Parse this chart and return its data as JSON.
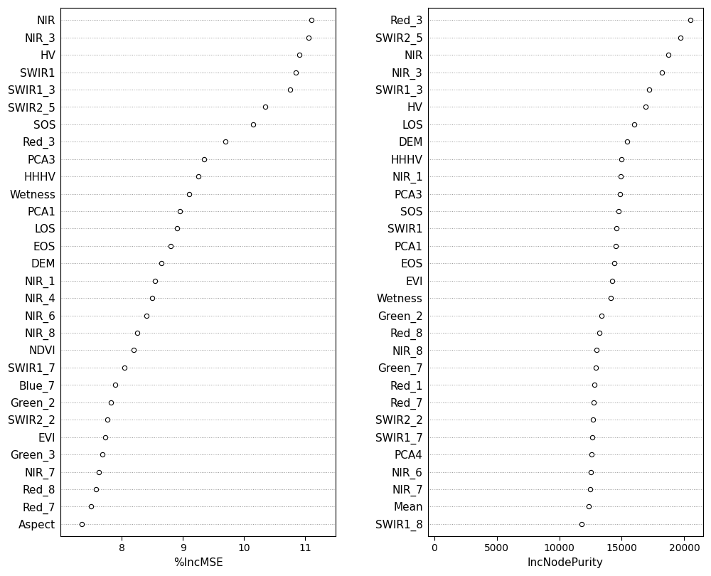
{
  "left_labels": [
    "NIR",
    "NIR_3",
    "HV",
    "SWIR1",
    "SWIR1_3",
    "SWIR2_5",
    "SOS",
    "Red_3",
    "PCA3",
    "HHHV",
    "Wetness",
    "PCA1",
    "LOS",
    "EOS",
    "DEM",
    "NIR_1",
    "NIR_4",
    "NIR_6",
    "NIR_8",
    "NDVI",
    "SWIR1_7",
    "Blue_7",
    "Green_2",
    "SWIR2_2",
    "EVI",
    "Green_3",
    "NIR_7",
    "Red_8",
    "Red_7",
    "Aspect"
  ],
  "left_values": [
    11.1,
    11.05,
    10.9,
    10.85,
    10.75,
    10.35,
    10.15,
    9.7,
    9.35,
    9.25,
    9.1,
    8.95,
    8.9,
    8.8,
    8.65,
    8.55,
    8.5,
    8.4,
    8.25,
    8.2,
    8.05,
    7.9,
    7.82,
    7.77,
    7.73,
    7.68,
    7.63,
    7.58,
    7.5,
    7.35
  ],
  "left_xlabel": "%IncMSE",
  "left_xlim": [
    7.0,
    11.5
  ],
  "left_xticks": [
    8,
    9,
    10,
    11
  ],
  "right_labels": [
    "Red_3",
    "SWIR2_5",
    "NIR",
    "NIR_3",
    "SWIR1_3",
    "HV",
    "LOS",
    "DEM",
    "HHHV",
    "NIR_1",
    "PCA3",
    "SOS",
    "SWIR1",
    "PCA1",
    "EOS",
    "EVI",
    "Wetness",
    "Green_2",
    "Red_8",
    "NIR_8",
    "Green_7",
    "Red_1",
    "Red_7",
    "SWIR2_2",
    "SWIR1_7",
    "PCA4",
    "NIR_6",
    "NIR_7",
    "Mean",
    "SWIR1_8"
  ],
  "right_values": [
    20500,
    19700,
    18700,
    18200,
    17200,
    16900,
    16000,
    15400,
    15000,
    14900,
    14850,
    14750,
    14600,
    14500,
    14400,
    14250,
    14100,
    13400,
    13200,
    13000,
    12900,
    12800,
    12750,
    12700,
    12650,
    12600,
    12550,
    12450,
    12350,
    11800
  ],
  "right_xlabel": "IncNodePurity",
  "right_xlim": [
    -500,
    21500
  ],
  "right_xticks": [
    0,
    5000,
    10000,
    15000,
    20000
  ],
  "dot_color": "white",
  "dot_edgecolor": "black",
  "dot_size": 4.5,
  "line_color": "#999999",
  "bg_color": "white",
  "label_fontsize": 11,
  "tick_fontsize": 10,
  "xlabel_fontsize": 11
}
